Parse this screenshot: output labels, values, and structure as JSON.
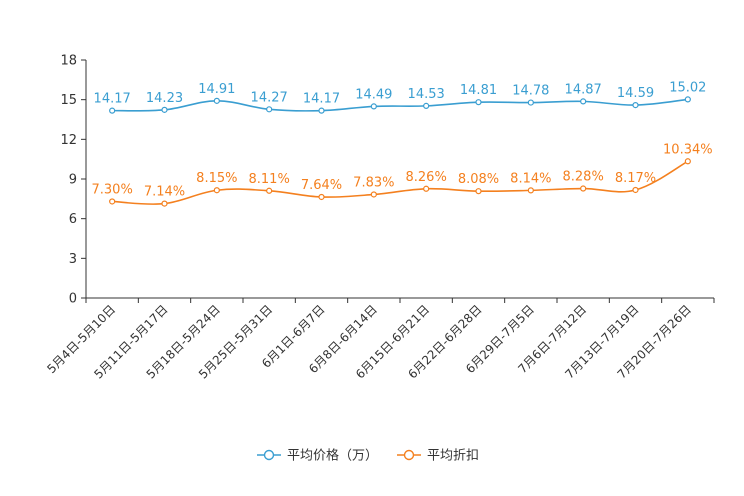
{
  "chart_data": {
    "type": "line",
    "categories": [
      "5月4日-5月10日",
      "5月11日-5月17日",
      "5月18日-5月24日",
      "5月25日-5月31日",
      "6月1日-6月7日",
      "6月8日-6月14日",
      "6月15日-6月21日",
      "6月22日-6月28日",
      "6月29日-7月5日",
      "7月6日-7月12日",
      "7月13日-7月19日",
      "7月20日-7月26日"
    ],
    "ylim": [
      0,
      18
    ],
    "yticks": [
      0,
      3,
      6,
      9,
      12,
      15,
      18
    ],
    "series": [
      {
        "name": "平均价格（万）",
        "color": "#3a9ed1",
        "values": [
          14.17,
          14.23,
          14.91,
          14.27,
          14.17,
          14.49,
          14.53,
          14.81,
          14.78,
          14.87,
          14.59,
          15.02
        ],
        "labels": [
          "14.17",
          "14.23",
          "14.91",
          "14.27",
          "14.17",
          "14.49",
          "14.53",
          "14.81",
          "14.78",
          "14.87",
          "14.59",
          "15.02"
        ]
      },
      {
        "name": "平均折扣",
        "color": "#f4801f",
        "values": [
          7.3,
          7.14,
          8.15,
          8.11,
          7.64,
          7.83,
          8.26,
          8.08,
          8.14,
          8.28,
          8.17,
          10.34
        ],
        "labels": [
          "7.30%",
          "7.14%",
          "8.15%",
          "8.11%",
          "7.64%",
          "7.83%",
          "8.26%",
          "8.08%",
          "8.14%",
          "8.28%",
          "8.17%",
          "10.34%"
        ]
      }
    ],
    "legend": "bottom-center",
    "title": "",
    "xlabel": "",
    "ylabel": ""
  }
}
